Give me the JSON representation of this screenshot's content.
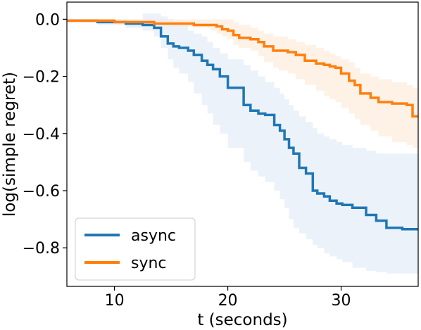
{
  "chart_data": {
    "type": "line",
    "title": "",
    "xlabel": "t (seconds)",
    "ylabel": "log(simple regret)",
    "xlim": [
      5.8,
      36.8
    ],
    "ylim": [
      -0.935,
      0.06
    ],
    "xticks": [
      10,
      20,
      30
    ],
    "yticks": [
      0.0,
      -0.2,
      -0.4,
      -0.6,
      -0.8
    ],
    "xtick_labels": [
      "10",
      "20",
      "30"
    ],
    "ytick_labels": [
      "0.0",
      "−0.2",
      "−0.4",
      "−0.6",
      "−0.8"
    ],
    "grid": false,
    "legend_position": "lower-left",
    "series": [
      {
        "name": "async",
        "color": "#1f77b4",
        "band_color": "#dce8f5",
        "x": [
          5.8,
          8.5,
          11.0,
          12.5,
          13.5,
          14.1,
          14.7,
          15.2,
          15.7,
          16.5,
          17.0,
          17.7,
          18.2,
          18.7,
          19.3,
          20.0,
          21.4,
          22.0,
          22.7,
          23.3,
          24.1,
          24.6,
          25.0,
          25.4,
          25.8,
          26.3,
          26.9,
          27.5,
          27.9,
          28.5,
          29.0,
          29.6,
          30.1,
          31.0,
          32.2,
          33.1,
          34.0,
          35.4,
          36.8
        ],
        "y": [
          -0.005,
          -0.01,
          -0.015,
          -0.02,
          -0.03,
          -0.06,
          -0.085,
          -0.095,
          -0.1,
          -0.11,
          -0.125,
          -0.145,
          -0.16,
          -0.175,
          -0.2,
          -0.24,
          -0.3,
          -0.32,
          -0.33,
          -0.335,
          -0.37,
          -0.39,
          -0.42,
          -0.45,
          -0.47,
          -0.52,
          -0.54,
          -0.6,
          -0.61,
          -0.62,
          -0.635,
          -0.645,
          -0.65,
          -0.66,
          -0.685,
          -0.705,
          -0.73,
          -0.735,
          -0.735
        ],
        "y_lower": [
          -0.005,
          -0.02,
          -0.03,
          -0.04,
          -0.06,
          -0.1,
          -0.14,
          -0.17,
          -0.19,
          -0.22,
          -0.26,
          -0.3,
          -0.33,
          -0.37,
          -0.4,
          -0.45,
          -0.5,
          -0.53,
          -0.55,
          -0.57,
          -0.6,
          -0.63,
          -0.66,
          -0.7,
          -0.73,
          -0.75,
          -0.77,
          -0.79,
          -0.8,
          -0.82,
          -0.83,
          -0.84,
          -0.85,
          -0.87,
          -0.88,
          -0.885,
          -0.89,
          -0.89,
          -0.89
        ],
        "y_upper": [
          0.0,
          0.0,
          0.0,
          0.02,
          0.02,
          0.01,
          0.0,
          -0.01,
          -0.02,
          -0.04,
          -0.05,
          -0.06,
          -0.08,
          -0.1,
          -0.12,
          -0.14,
          -0.16,
          -0.18,
          -0.2,
          -0.22,
          -0.24,
          -0.26,
          -0.28,
          -0.3,
          -0.32,
          -0.34,
          -0.36,
          -0.38,
          -0.4,
          -0.41,
          -0.42,
          -0.43,
          -0.44,
          -0.45,
          -0.46,
          -0.47,
          -0.47,
          -0.47,
          -0.47
        ]
      },
      {
        "name": "sync",
        "color": "#ff7f0e",
        "band_color": "#fde7d2",
        "x": [
          5.8,
          8.0,
          10.0,
          13.5,
          15.0,
          17.0,
          18.5,
          19.0,
          19.5,
          20.0,
          20.5,
          21.0,
          22.0,
          22.7,
          23.2,
          24.0,
          24.5,
          25.3,
          26.0,
          26.8,
          27.8,
          28.5,
          29.0,
          29.5,
          30.0,
          30.7,
          31.2,
          31.7,
          32.6,
          33.3,
          34.5,
          35.8,
          36.3,
          36.8
        ],
        "y": [
          -0.005,
          -0.005,
          -0.01,
          -0.015,
          -0.015,
          -0.02,
          -0.02,
          -0.025,
          -0.035,
          -0.04,
          -0.055,
          -0.065,
          -0.07,
          -0.08,
          -0.095,
          -0.11,
          -0.11,
          -0.115,
          -0.125,
          -0.145,
          -0.155,
          -0.16,
          -0.165,
          -0.17,
          -0.19,
          -0.215,
          -0.23,
          -0.26,
          -0.275,
          -0.29,
          -0.295,
          -0.3,
          -0.34,
          -0.34
        ],
        "y_lower": [
          -0.005,
          -0.01,
          -0.015,
          -0.02,
          -0.025,
          -0.03,
          -0.04,
          -0.05,
          -0.06,
          -0.07,
          -0.09,
          -0.1,
          -0.11,
          -0.13,
          -0.15,
          -0.17,
          -0.18,
          -0.19,
          -0.21,
          -0.23,
          -0.25,
          -0.27,
          -0.28,
          -0.29,
          -0.31,
          -0.33,
          -0.35,
          -0.37,
          -0.39,
          -0.41,
          -0.43,
          -0.44,
          -0.45,
          -0.46
        ],
        "y_upper": [
          0.0,
          0.0,
          0.0,
          0.0,
          0.0,
          0.0,
          0.0,
          0.0,
          0.0,
          0.0,
          -0.01,
          -0.02,
          -0.03,
          -0.04,
          -0.05,
          -0.06,
          -0.06,
          -0.07,
          -0.08,
          -0.09,
          -0.1,
          -0.11,
          -0.12,
          -0.13,
          -0.14,
          -0.15,
          -0.17,
          -0.19,
          -0.2,
          -0.21,
          -0.22,
          -0.23,
          -0.24,
          -0.25
        ]
      }
    ]
  }
}
